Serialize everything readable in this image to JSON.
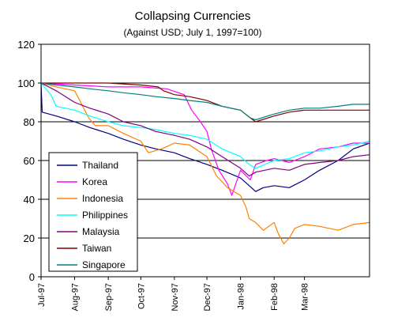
{
  "chart_data": {
    "type": "line",
    "title": "Collapsing Currencies",
    "subtitle": "(Against USD; July 1, 1997=100)",
    "xlabel": "",
    "ylabel": "",
    "ylim": [
      0,
      120
    ],
    "yticks": [
      0,
      20,
      40,
      60,
      80,
      100,
      120
    ],
    "grid": "horizontal",
    "legend": "bottom-left",
    "x_domain": [
      "1997-07-01",
      "1998-04-30"
    ],
    "x_tick_labels": [
      {
        "date": "1997-07-01",
        "label": "Jul-97"
      },
      {
        "date": "1997-08-01",
        "label": "Aug-97"
      },
      {
        "date": "1997-09-01",
        "label": "Sep-97"
      },
      {
        "date": "1997-10-01",
        "label": "Oct-97"
      },
      {
        "date": "1997-11-01",
        "label": "Nov-97"
      },
      {
        "date": "1997-12-01",
        "label": "Dec-97"
      },
      {
        "date": "1998-01-01",
        "label": "Jan-98"
      },
      {
        "date": "1998-02-01",
        "label": "Feb-98"
      },
      {
        "date": "1998-03-01",
        "label": "Mar-98"
      }
    ],
    "series": [
      {
        "name": "Thailand",
        "color": "#000080",
        "points": [
          [
            "1997-07-01",
            100
          ],
          [
            "1997-07-02",
            85
          ],
          [
            "1997-07-15",
            83
          ],
          [
            "1997-08-01",
            80
          ],
          [
            "1997-08-15",
            77
          ],
          [
            "1997-09-01",
            74
          ],
          [
            "1997-09-15",
            71
          ],
          [
            "1997-10-01",
            68
          ],
          [
            "1997-10-15",
            66
          ],
          [
            "1997-11-01",
            64
          ],
          [
            "1997-11-15",
            61
          ],
          [
            "1997-12-01",
            58
          ],
          [
            "1997-12-15",
            55
          ],
          [
            "1998-01-01",
            51
          ],
          [
            "1998-01-09",
            47
          ],
          [
            "1998-01-15",
            44
          ],
          [
            "1998-01-22",
            46
          ],
          [
            "1998-02-01",
            47
          ],
          [
            "1998-02-15",
            46
          ],
          [
            "1998-03-01",
            50
          ],
          [
            "1998-03-15",
            55
          ],
          [
            "1998-04-01",
            60
          ],
          [
            "1998-04-15",
            66
          ],
          [
            "1998-04-30",
            69
          ]
        ]
      },
      {
        "name": "Korea",
        "color": "#ff00ff",
        "points": [
          [
            "1997-07-01",
            100
          ],
          [
            "1997-08-01",
            99
          ],
          [
            "1997-09-01",
            98
          ],
          [
            "1997-10-01",
            98
          ],
          [
            "1997-10-25",
            97
          ],
          [
            "1997-11-10",
            94
          ],
          [
            "1997-11-17",
            86
          ],
          [
            "1997-11-25",
            80
          ],
          [
            "1997-12-01",
            75
          ],
          [
            "1997-12-05",
            66
          ],
          [
            "1997-12-12",
            55
          ],
          [
            "1997-12-20",
            48
          ],
          [
            "1997-12-24",
            42
          ],
          [
            "1998-01-01",
            55
          ],
          [
            "1998-01-10",
            50
          ],
          [
            "1998-01-15",
            58
          ],
          [
            "1998-01-25",
            60
          ],
          [
            "1998-02-01",
            61
          ],
          [
            "1998-02-15",
            59
          ],
          [
            "1998-03-01",
            62
          ],
          [
            "1998-03-15",
            66
          ],
          [
            "1998-04-01",
            67
          ],
          [
            "1998-04-15",
            69
          ],
          [
            "1998-04-30",
            69
          ]
        ]
      },
      {
        "name": "Indonesia",
        "color": "#ff8000",
        "points": [
          [
            "1997-07-01",
            100
          ],
          [
            "1997-07-15",
            98
          ],
          [
            "1997-08-01",
            96
          ],
          [
            "1997-08-14",
            82
          ],
          [
            "1997-08-20",
            78
          ],
          [
            "1997-09-01",
            78
          ],
          [
            "1997-09-15",
            74
          ],
          [
            "1997-10-01",
            70
          ],
          [
            "1997-10-08",
            64
          ],
          [
            "1997-10-20",
            66
          ],
          [
            "1997-11-01",
            69
          ],
          [
            "1997-11-15",
            68
          ],
          [
            "1997-12-01",
            62
          ],
          [
            "1997-12-10",
            52
          ],
          [
            "1997-12-20",
            46
          ],
          [
            "1998-01-01",
            42
          ],
          [
            "1998-01-06",
            36
          ],
          [
            "1998-01-09",
            30
          ],
          [
            "1998-01-15",
            28
          ],
          [
            "1998-01-22",
            24
          ],
          [
            "1998-02-01",
            28
          ],
          [
            "1998-02-05",
            22
          ],
          [
            "1998-02-10",
            17
          ],
          [
            "1998-02-15",
            20
          ],
          [
            "1998-02-20",
            25
          ],
          [
            "1998-03-01",
            27
          ],
          [
            "1998-03-15",
            26
          ],
          [
            "1998-04-01",
            24
          ],
          [
            "1998-04-15",
            27
          ],
          [
            "1998-04-30",
            28
          ]
        ]
      },
      {
        "name": "Philippines",
        "color": "#00ffff",
        "points": [
          [
            "1997-07-01",
            100
          ],
          [
            "1997-07-10",
            94
          ],
          [
            "1997-07-15",
            88
          ],
          [
            "1997-08-01",
            86
          ],
          [
            "1997-08-15",
            83
          ],
          [
            "1997-09-01",
            80
          ],
          [
            "1997-09-15",
            78
          ],
          [
            "1997-10-01",
            77
          ],
          [
            "1997-10-15",
            76
          ],
          [
            "1997-11-01",
            74
          ],
          [
            "1997-11-15",
            73
          ],
          [
            "1997-12-01",
            71
          ],
          [
            "1997-12-15",
            66
          ],
          [
            "1998-01-01",
            62
          ],
          [
            "1998-01-09",
            58
          ],
          [
            "1998-01-15",
            56
          ],
          [
            "1998-02-01",
            60
          ],
          [
            "1998-02-15",
            61
          ],
          [
            "1998-03-01",
            64
          ],
          [
            "1998-03-15",
            65
          ],
          [
            "1998-04-01",
            67
          ],
          [
            "1998-04-15",
            68
          ],
          [
            "1998-04-30",
            70
          ]
        ]
      },
      {
        "name": "Malaysia",
        "color": "#800080",
        "points": [
          [
            "1997-07-01",
            100
          ],
          [
            "1997-07-15",
            96
          ],
          [
            "1997-08-01",
            90
          ],
          [
            "1997-08-15",
            87
          ],
          [
            "1997-09-01",
            84
          ],
          [
            "1997-09-15",
            80
          ],
          [
            "1997-10-01",
            78
          ],
          [
            "1997-10-15",
            75
          ],
          [
            "1997-11-01",
            73
          ],
          [
            "1997-11-15",
            71
          ],
          [
            "1997-12-01",
            67
          ],
          [
            "1997-12-15",
            62
          ],
          [
            "1998-01-01",
            56
          ],
          [
            "1998-01-09",
            52
          ],
          [
            "1998-01-15",
            54
          ],
          [
            "1998-02-01",
            56
          ],
          [
            "1998-02-15",
            55
          ],
          [
            "1998-03-01",
            58
          ],
          [
            "1998-03-15",
            59
          ],
          [
            "1998-04-01",
            60
          ],
          [
            "1998-04-15",
            62
          ],
          [
            "1998-04-30",
            63
          ]
        ]
      },
      {
        "name": "Taiwan",
        "color": "#800000",
        "points": [
          [
            "1997-07-01",
            100
          ],
          [
            "1997-08-01",
            100
          ],
          [
            "1997-09-01",
            100
          ],
          [
            "1997-10-01",
            99
          ],
          [
            "1997-10-17",
            98
          ],
          [
            "1997-10-22",
            96
          ],
          [
            "1997-11-01",
            94
          ],
          [
            "1997-11-15",
            93
          ],
          [
            "1997-12-01",
            91
          ],
          [
            "1997-12-15",
            88
          ],
          [
            "1998-01-01",
            86
          ],
          [
            "1998-01-10",
            82
          ],
          [
            "1998-01-15",
            80
          ],
          [
            "1998-02-01",
            83
          ],
          [
            "1998-02-15",
            85
          ],
          [
            "1998-03-01",
            86
          ],
          [
            "1998-03-15",
            86
          ],
          [
            "1998-04-01",
            86
          ],
          [
            "1998-04-30",
            86
          ]
        ]
      },
      {
        "name": "Singapore",
        "color": "#008080",
        "points": [
          [
            "1997-07-01",
            100
          ],
          [
            "1997-07-15",
            99
          ],
          [
            "1997-08-01",
            98
          ],
          [
            "1997-08-15",
            97
          ],
          [
            "1997-09-01",
            96
          ],
          [
            "1997-09-15",
            95
          ],
          [
            "1997-10-01",
            94
          ],
          [
            "1997-10-15",
            93
          ],
          [
            "1997-11-01",
            92
          ],
          [
            "1997-11-15",
            91
          ],
          [
            "1997-12-01",
            90
          ],
          [
            "1997-12-15",
            88
          ],
          [
            "1998-01-01",
            86
          ],
          [
            "1998-01-10",
            82
          ],
          [
            "1998-01-15",
            81
          ],
          [
            "1998-02-01",
            84
          ],
          [
            "1998-02-15",
            86
          ],
          [
            "1998-03-01",
            87
          ],
          [
            "1998-03-15",
            87
          ],
          [
            "1998-04-01",
            88
          ],
          [
            "1998-04-15",
            89
          ],
          [
            "1998-04-30",
            89
          ]
        ]
      }
    ]
  }
}
